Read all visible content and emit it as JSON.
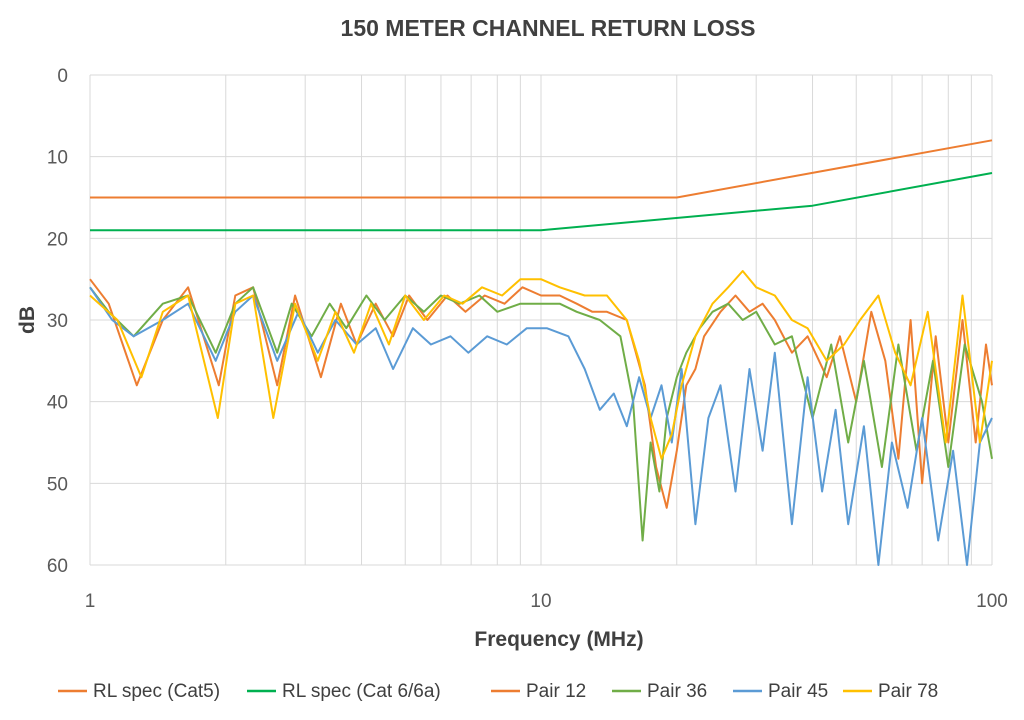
{
  "chart_data": {
    "type": "line",
    "title": "150 METER CHANNEL RETURN LOSS",
    "xlabel": "Frequency (MHz)",
    "ylabel": "dB",
    "x_scale": "log",
    "xlim": [
      1,
      100
    ],
    "ylim": [
      0,
      60
    ],
    "y_inverted": true,
    "grid": true,
    "legend_position": "bottom",
    "x_ticks": [
      {
        "value": 1,
        "label": "1"
      },
      {
        "value": 10,
        "label": "10"
      },
      {
        "value": 100,
        "label": "100"
      }
    ],
    "y_ticks": [
      {
        "value": 0,
        "label": "0"
      },
      {
        "value": 10,
        "label": "10"
      },
      {
        "value": 20,
        "label": "20"
      },
      {
        "value": 30,
        "label": "30"
      },
      {
        "value": 40,
        "label": "40"
      },
      {
        "value": 50,
        "label": "50"
      },
      {
        "value": 60,
        "label": "60"
      }
    ],
    "series": [
      {
        "name": "RL spec (Cat5)",
        "color": "#ed7d31",
        "x": [
          1,
          20,
          100
        ],
        "y": [
          15,
          15,
          8
        ]
      },
      {
        "name": "RL spec (Cat 6/6a)",
        "color": "#00b050",
        "x": [
          1,
          10,
          40,
          100
        ],
        "y": [
          19,
          19,
          16,
          12
        ]
      },
      {
        "name": "Pair 12",
        "color": "#ed7d31",
        "x": [
          1,
          1.1,
          1.27,
          1.45,
          1.65,
          1.93,
          2.1,
          2.3,
          2.6,
          2.85,
          3.25,
          3.6,
          3.9,
          4.3,
          4.7,
          5.1,
          5.6,
          6.2,
          6.8,
          7.5,
          8.3,
          9.1,
          10,
          11,
          12,
          13,
          14,
          15.5,
          17,
          18,
          19,
          20,
          21,
          22,
          23,
          25,
          27,
          29,
          31,
          33,
          36,
          39,
          43,
          46,
          50,
          54,
          58,
          62,
          66,
          70,
          75,
          80,
          86,
          92,
          97,
          100
        ],
        "y": [
          25,
          28,
          38,
          30,
          26,
          38,
          27,
          26,
          38,
          27,
          37,
          28,
          33,
          28,
          32,
          27,
          30,
          27,
          29,
          27,
          28,
          26,
          27,
          27,
          28,
          29,
          29,
          30,
          38,
          48,
          53,
          46,
          38,
          36,
          32,
          29,
          27,
          29,
          28,
          30,
          34,
          32,
          37,
          32,
          40,
          29,
          35,
          47,
          30,
          50,
          32,
          45,
          30,
          45,
          33,
          38
        ]
      },
      {
        "name": "Pair 36",
        "color": "#70ad47",
        "x": [
          1,
          1.1,
          1.25,
          1.45,
          1.65,
          1.9,
          2.1,
          2.3,
          2.6,
          2.8,
          3.1,
          3.4,
          3.7,
          4.1,
          4.5,
          5,
          5.5,
          6,
          6.6,
          7.3,
          8,
          9,
          10,
          11,
          12,
          13.5,
          15,
          16,
          16.8,
          17.5,
          18.3,
          19,
          20,
          21,
          22.5,
          24,
          26,
          28,
          30,
          33,
          36,
          40,
          44,
          48,
          52,
          57,
          62,
          68,
          74,
          80,
          87,
          95,
          100
        ],
        "y": [
          26,
          29,
          32,
          28,
          27,
          34,
          28,
          26,
          34,
          28,
          32,
          28,
          31,
          27,
          30,
          27,
          29,
          27,
          28,
          27,
          29,
          28,
          28,
          28,
          29,
          30,
          32,
          40,
          57,
          45,
          51,
          42,
          37,
          34,
          31,
          29,
          28,
          30,
          29,
          33,
          32,
          42,
          33,
          45,
          35,
          48,
          33,
          46,
          35,
          48,
          33,
          40,
          47
        ]
      },
      {
        "name": "Pair 45",
        "color": "#5b9bd5",
        "x": [
          1,
          1.12,
          1.25,
          1.45,
          1.65,
          1.9,
          2.1,
          2.3,
          2.6,
          2.9,
          3.2,
          3.5,
          3.9,
          4.3,
          4.7,
          5.2,
          5.7,
          6.3,
          6.9,
          7.6,
          8.4,
          9.3,
          10.3,
          11.5,
          12.5,
          13.5,
          14.5,
          15.5,
          16.5,
          17.5,
          18.5,
          19.5,
          20.5,
          22,
          23.5,
          25,
          27,
          29,
          31,
          33,
          36,
          39,
          42,
          45,
          48,
          52,
          56,
          60,
          65,
          70,
          76,
          82,
          88,
          94,
          100
        ],
        "y": [
          26,
          30,
          32,
          30,
          28,
          35,
          29,
          27,
          35,
          29,
          34,
          30,
          33,
          31,
          36,
          31,
          33,
          32,
          34,
          32,
          33,
          31,
          31,
          32,
          36,
          41,
          39,
          43,
          37,
          42,
          38,
          45,
          36,
          55,
          42,
          38,
          51,
          36,
          46,
          34,
          55,
          37,
          51,
          41,
          55,
          43,
          60,
          45,
          53,
          42,
          57,
          46,
          60,
          45,
          42
        ]
      },
      {
        "name": "Pair 78",
        "color": "#ffc000",
        "x": [
          1,
          1.15,
          1.3,
          1.45,
          1.65,
          1.92,
          2.1,
          2.3,
          2.55,
          2.85,
          3.2,
          3.5,
          3.85,
          4.2,
          4.6,
          5,
          5.5,
          6.1,
          6.7,
          7.4,
          8.2,
          9,
          10,
          11,
          12.5,
          14,
          15.5,
          16.5,
          17.5,
          18.5,
          19.5,
          20.5,
          22,
          24,
          26,
          28,
          30,
          33,
          36,
          39,
          43,
          47,
          51,
          56,
          61,
          66,
          72,
          79,
          86,
          94,
          100
        ],
        "y": [
          27,
          30,
          37,
          29,
          27,
          42,
          28,
          27,
          42,
          28,
          35,
          29,
          34,
          28,
          33,
          27,
          30,
          27,
          28,
          26,
          27,
          25,
          25,
          26,
          27,
          27,
          30,
          35,
          42,
          47,
          44,
          38,
          32,
          28,
          26,
          24,
          26,
          27,
          30,
          31,
          35,
          33,
          30,
          27,
          34,
          38,
          29,
          45,
          27,
          45,
          35
        ]
      }
    ]
  }
}
